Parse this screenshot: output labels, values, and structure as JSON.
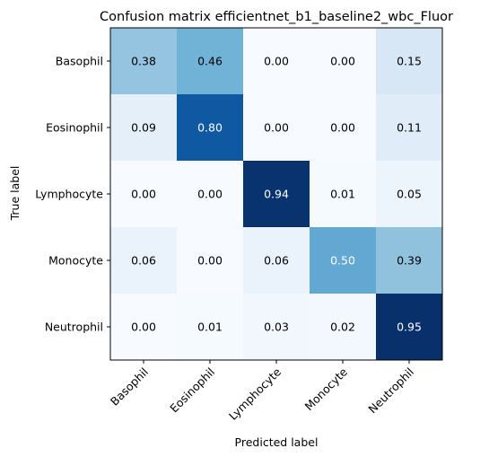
{
  "chart_data": {
    "type": "heatmap",
    "title": "Confusion matrix efficientnet_b1_baseline2_wbc_Fluor",
    "xlabel": "Predicted label",
    "ylabel": "True label",
    "x_categories": [
      "Basophil",
      "Eosinophil",
      "Lymphocyte",
      "Monocyte",
      "Neutrophil"
    ],
    "y_categories": [
      "Basophil",
      "Eosinophil",
      "Lymphocyte",
      "Monocyte",
      "Neutrophil"
    ],
    "values": [
      [
        0.38,
        0.46,
        0.0,
        0.0,
        0.15
      ],
      [
        0.09,
        0.8,
        0.0,
        0.0,
        0.11
      ],
      [
        0.0,
        0.0,
        0.94,
        0.01,
        0.05
      ],
      [
        0.06,
        0.0,
        0.06,
        0.5,
        0.39
      ],
      [
        0.0,
        0.01,
        0.03,
        0.02,
        0.95
      ]
    ],
    "value_format": "0.00",
    "colormap": "Blues",
    "grid": false,
    "colors": {
      "text_dark": "#000000",
      "text_light": "#ffffff",
      "frame": "#000000"
    }
  }
}
